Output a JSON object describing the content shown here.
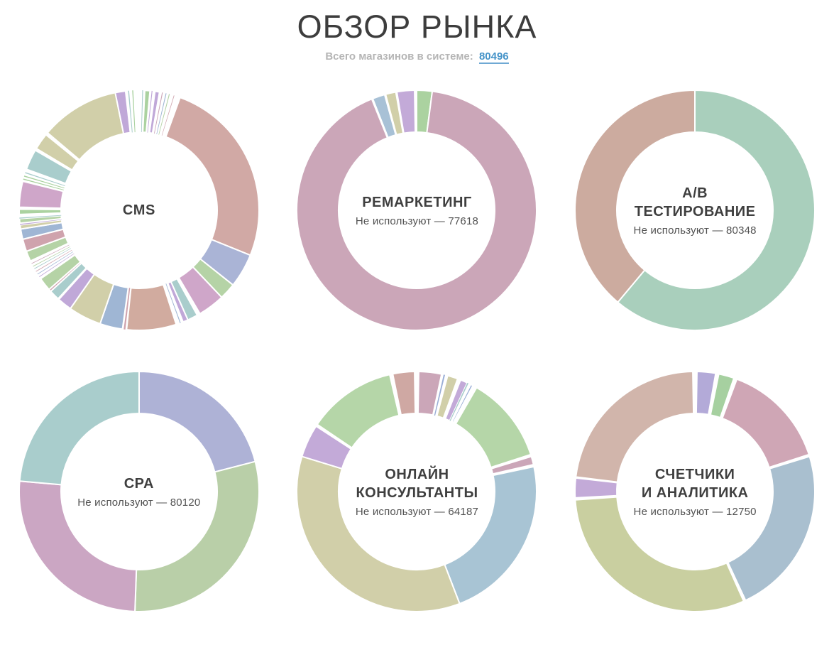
{
  "header": {
    "title": "ОБЗОР РЫНКА",
    "subtitle_label": "Всего магазинов в системе:",
    "total_stores": "80496",
    "link_color": "#4593c8",
    "title_color": "#3d3d3d"
  },
  "chart_data": [
    {
      "type": "pie",
      "variant": "donut",
      "title": "CMS",
      "center_subtitle": "",
      "angle_unit": "degrees_clockwise_from_top",
      "slices": [
        {
          "c": "#ffffff",
          "deg": 1.5
        },
        {
          "c": "#a9cdcc",
          "deg": 0.4
        },
        {
          "c": "#ffffff",
          "deg": 0.8
        },
        {
          "c": "#abd2a0",
          "deg": 2.5
        },
        {
          "c": "#ffffff",
          "deg": 0.8
        },
        {
          "c": "#c0a8d8",
          "deg": 0.4
        },
        {
          "c": "#ffffff",
          "deg": 1.2
        },
        {
          "c": "#c0a8d8",
          "deg": 2.2
        },
        {
          "c": "#ffffff",
          "deg": 1.2
        },
        {
          "c": "#cba6b8",
          "deg": 0.4
        },
        {
          "c": "#ffffff",
          "deg": 1.4
        },
        {
          "c": "#9fb6d4",
          "deg": 0.4
        },
        {
          "c": "#ffffff",
          "deg": 1.2
        },
        {
          "c": "#b5d3a6",
          "deg": 0.4
        },
        {
          "c": "#ffffff",
          "deg": 2.0
        },
        {
          "c": "#cfa3ad",
          "deg": 0.3
        },
        {
          "c": "#ffffff",
          "deg": 2.9
        },
        {
          "c": "#d1a9a5",
          "deg": 92
        },
        {
          "c": "#aab4d6",
          "deg": 16.5
        },
        {
          "c": "#b5d3a6",
          "deg": 8
        },
        {
          "c": "#cfa6c9",
          "deg": 13
        },
        {
          "c": "#ffffff",
          "deg": 1.5
        },
        {
          "c": "#a9cdcc",
          "deg": 5
        },
        {
          "c": "#c0a8d8",
          "deg": 2.5
        },
        {
          "c": "#ffffff",
          "deg": 1.2
        },
        {
          "c": "#9fb6d4",
          "deg": 0.4
        },
        {
          "c": "#ffffff",
          "deg": 1.9
        },
        {
          "c": "#d1ab9f",
          "deg": 24
        },
        {
          "c": "#ffffff",
          "deg": 0.6
        },
        {
          "c": "#cfa3ad",
          "deg": 0.8
        },
        {
          "c": "#ffffff",
          "deg": 0.6
        },
        {
          "c": "#9fb6d4",
          "deg": 11
        },
        {
          "c": "#d1cfa9",
          "deg": 16
        },
        {
          "c": "#c0a8d8",
          "deg": 7
        },
        {
          "c": "#ffffff",
          "deg": 0.5
        },
        {
          "c": "#a9cdcc",
          "deg": 5
        },
        {
          "c": "#cfa3ad",
          "deg": 1.2
        },
        {
          "c": "#b5d3a6",
          "deg": 6.5
        },
        {
          "c": "#ffffff",
          "deg": 1.0
        },
        {
          "c": "#c0a8d8",
          "deg": 0.3
        },
        {
          "c": "#ffffff",
          "deg": 1.2
        },
        {
          "c": "#9fb6d4",
          "deg": 0.3
        },
        {
          "c": "#ffffff",
          "deg": 1.2
        },
        {
          "c": "#cfa3ad",
          "deg": 0.3
        },
        {
          "c": "#ffffff",
          "deg": 1.2
        },
        {
          "c": "#a9cdcc",
          "deg": 0.3
        },
        {
          "c": "#ffffff",
          "deg": 1.0
        },
        {
          "c": "#b5d3a6",
          "deg": 0.3
        },
        {
          "c": "#ffffff",
          "deg": 1.2
        },
        {
          "c": "#cba6b8",
          "deg": 0.3
        },
        {
          "c": "#ffffff",
          "deg": 1.2
        },
        {
          "c": "#b5d3a6",
          "deg": 5
        },
        {
          "c": "#cfa3ad",
          "deg": 6
        },
        {
          "c": "#9fb6d4",
          "deg": 5
        },
        {
          "c": "#d1cfa9",
          "deg": 2
        },
        {
          "c": "#c0a8d8",
          "deg": 0.8
        },
        {
          "c": "#b5d3a6",
          "deg": 2.2
        },
        {
          "c": "#a9cdcc",
          "deg": 0.5
        },
        {
          "c": "#ffffff",
          "deg": 1.5
        },
        {
          "c": "#abd2a0",
          "deg": 2.5
        },
        {
          "c": "#ffffff",
          "deg": 1.0
        },
        {
          "c": "#cfa6c9",
          "deg": 12.5
        },
        {
          "c": "#ffffff",
          "deg": 0.8
        },
        {
          "c": "#abd2a0",
          "deg": 0.5
        },
        {
          "c": "#ffffff",
          "deg": 1.0
        },
        {
          "c": "#abd2a0",
          "deg": 0.5
        },
        {
          "c": "#ffffff",
          "deg": 1.2
        },
        {
          "c": "#a9cdcc",
          "deg": 0.5
        },
        {
          "c": "#ffffff",
          "deg": 1.5
        },
        {
          "c": "#a9cdcc",
          "deg": 10
        },
        {
          "c": "#ffffff",
          "deg": 1.0
        },
        {
          "c": "#d1cfa9",
          "deg": 8
        },
        {
          "c": "#ffffff",
          "deg": 1.2
        },
        {
          "c": "#d1cfa9",
          "deg": 38.3
        },
        {
          "c": "#c0a8d8",
          "deg": 5
        },
        {
          "c": "#ffffff",
          "deg": 1.2
        },
        {
          "c": "#a9cdcc",
          "deg": 0.5
        },
        {
          "c": "#ffffff",
          "deg": 1.5
        },
        {
          "c": "#abd2a0",
          "deg": 0.5
        },
        {
          "c": "#ffffff",
          "deg": 2.8
        }
      ]
    },
    {
      "type": "pie",
      "variant": "donut",
      "title": "РЕМАРКЕТИНГ",
      "center_subtitle": "Не используют — 77618",
      "not_using_value": 77618,
      "angle_unit": "degrees_clockwise_from_top",
      "slices": [
        {
          "c": "#abd2a0",
          "deg": 7.5
        },
        {
          "c": "#cba6b8",
          "deg": 330.5
        },
        {
          "c": "#ffffff",
          "deg": 0.5
        },
        {
          "c": "#a8c1d6",
          "deg": 6
        },
        {
          "c": "#ffffff",
          "deg": 0.5
        },
        {
          "c": "#d1cfa9",
          "deg": 5
        },
        {
          "c": "#ffffff",
          "deg": 0.5
        },
        {
          "c": "#c3aad8",
          "deg": 8.5
        },
        {
          "c": "#ffffff",
          "deg": 1
        }
      ]
    },
    {
      "type": "pie",
      "variant": "donut",
      "title": "A/B\nТЕСТИРОВАНИЕ",
      "center_subtitle": "Не используют — 80348",
      "not_using_value": 80348,
      "angle_unit": "degrees_clockwise_from_top",
      "slices": [
        {
          "c": "#a9cfbc",
          "deg": 220
        },
        {
          "c": "#ccab9f",
          "deg": 140
        }
      ]
    },
    {
      "type": "pie",
      "variant": "donut",
      "title": "CPA",
      "center_subtitle": "Не используют — 80120",
      "not_using_value": 80120,
      "angle_unit": "degrees_clockwise_from_top",
      "slices": [
        {
          "c": "#aeb2d6",
          "deg": 75.5
        },
        {
          "c": "#b9cfa8",
          "deg": 106.5
        },
        {
          "c": "#cba6c3",
          "deg": 93
        },
        {
          "c": "#a9cdcc",
          "deg": 85
        }
      ]
    },
    {
      "type": "pie",
      "variant": "donut",
      "title": "ОНЛАЙН\nКОНСУЛЬТАНТЫ",
      "center_subtitle": "Не используют — 64187",
      "not_using_value": 64187,
      "angle_unit": "degrees_clockwise_from_top",
      "slices": [
        {
          "c": "#ffffff",
          "deg": 1
        },
        {
          "c": "#cba6b8",
          "deg": 11
        },
        {
          "c": "#ffffff",
          "deg": 1
        },
        {
          "c": "#9aaed6",
          "deg": 0.7
        },
        {
          "c": "#ffffff",
          "deg": 1.3
        },
        {
          "c": "#d1cfa9",
          "deg": 5
        },
        {
          "c": "#ffffff",
          "deg": 1.5
        },
        {
          "c": "#c3aad8",
          "deg": 3.5
        },
        {
          "c": "#a9cdcc",
          "deg": 0.6
        },
        {
          "c": "#ffffff",
          "deg": 1.2
        },
        {
          "c": "#9aaed6",
          "deg": 1.2
        },
        {
          "c": "#ffffff",
          "deg": 2
        },
        {
          "c": "#b5d6a8",
          "deg": 42
        },
        {
          "c": "#ffffff",
          "deg": 1
        },
        {
          "c": "#cba6b8",
          "deg": 4
        },
        {
          "c": "#ffffff",
          "deg": 1
        },
        {
          "c": "#a8c4d4",
          "deg": 81
        },
        {
          "c": "#d1cfa9",
          "deg": 128
        },
        {
          "c": "#c3aad8",
          "deg": 16
        },
        {
          "c": "#ffffff",
          "deg": 1
        },
        {
          "c": "#b5d6a8",
          "deg": 43
        },
        {
          "c": "#ffffff",
          "deg": 1.5
        },
        {
          "c": "#cfa8a3",
          "deg": 10.5
        },
        {
          "c": "#ffffff",
          "deg": 1
        }
      ]
    },
    {
      "type": "pie",
      "variant": "donut",
      "title": "СЧЕТЧИКИ\nИ АНАЛИТИКА",
      "center_subtitle": "Не используют — 12750",
      "not_using_value": 12750,
      "angle_unit": "degrees_clockwise_from_top",
      "slices": [
        {
          "c": "#ffffff",
          "deg": 1
        },
        {
          "c": "#b3aad8",
          "deg": 9
        },
        {
          "c": "#ffffff",
          "deg": 1.5
        },
        {
          "c": "#a6d0a0",
          "deg": 7.5
        },
        {
          "c": "#ffffff",
          "deg": 1.5
        },
        {
          "c": "#cfa6b5",
          "deg": 51.5
        },
        {
          "c": "#ffffff",
          "deg": 1
        },
        {
          "c": "#a9bfcf",
          "deg": 82
        },
        {
          "c": "#ffffff",
          "deg": 1
        },
        {
          "c": "#c9cfa0",
          "deg": 110
        },
        {
          "c": "#ffffff",
          "deg": 1
        },
        {
          "c": "#c3aad8",
          "deg": 9.5
        },
        {
          "c": "#ffffff",
          "deg": 0.5
        },
        {
          "c": "#d1b5ab",
          "deg": 82
        },
        {
          "c": "#ffffff",
          "deg": 1
        }
      ]
    }
  ]
}
